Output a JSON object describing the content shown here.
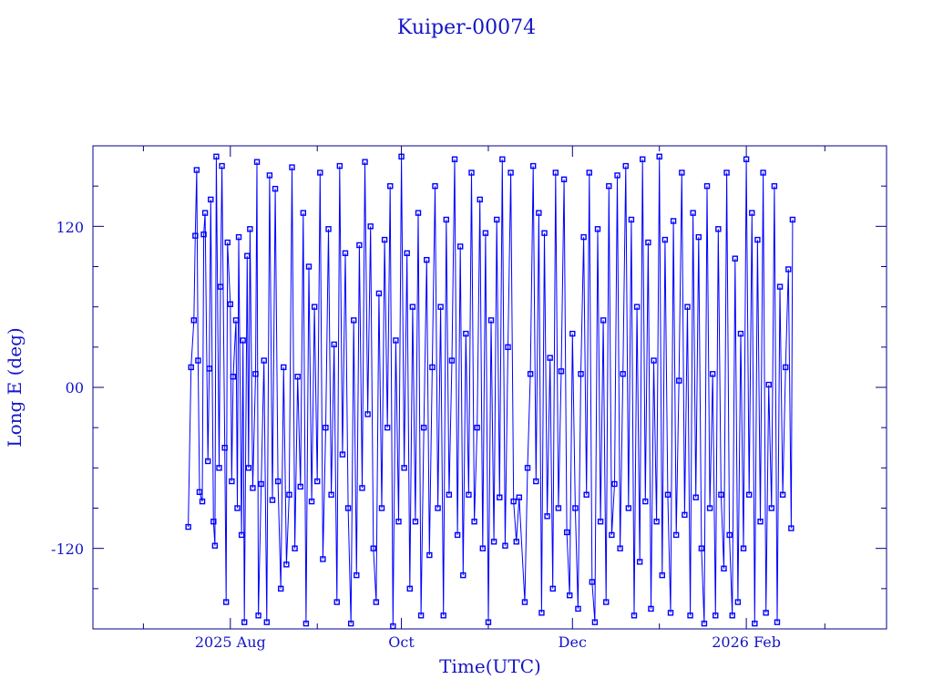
{
  "chart_data": {
    "type": "line",
    "title": "Kuiper-00074",
    "xlabel": "Time(UTC)",
    "ylabel": "Long E (deg)",
    "xlim": [
      "2025-06-13",
      "2026-03-23"
    ],
    "ylim": [
      -180,
      180
    ],
    "yticks": [
      120,
      0,
      -120
    ],
    "ytick_labels": [
      "120",
      "00",
      "-120"
    ],
    "xticks": [
      "2025-08-01",
      "2025-10-01",
      "2025-12-01",
      "2026-02-01"
    ],
    "xtick_labels": [
      "2025 Aug",
      "Oct",
      "Dec",
      "2026 Feb"
    ],
    "grid": false,
    "markers": "square",
    "colors": {
      "series": "#0000ff",
      "axes": "#00008b",
      "text": "#1414c8"
    },
    "series": [
      {
        "points": [
          [
            "2025-07-17",
            -104
          ],
          [
            "2025-07-18",
            15
          ],
          [
            "2025-07-19",
            50
          ],
          [
            "2025-07-19T12",
            113
          ],
          [
            "2025-07-20",
            162
          ],
          [
            "2025-07-20T12",
            20
          ],
          [
            "2025-07-21",
            -78
          ],
          [
            "2025-07-22",
            -85
          ],
          [
            "2025-07-22T12",
            114
          ],
          [
            "2025-07-23",
            130
          ],
          [
            "2025-07-24",
            -55
          ],
          [
            "2025-07-24T12",
            14
          ],
          [
            "2025-07-25",
            140
          ],
          [
            "2025-07-26",
            -100
          ],
          [
            "2025-07-26T12",
            -118
          ],
          [
            "2025-07-27",
            172
          ],
          [
            "2025-07-28",
            -60
          ],
          [
            "2025-07-28T12",
            75
          ],
          [
            "2025-07-29",
            165
          ],
          [
            "2025-07-30",
            -45
          ],
          [
            "2025-07-30T12",
            -160
          ],
          [
            "2025-07-31",
            108
          ],
          [
            "2025-08-01",
            62
          ],
          [
            "2025-08-01T12",
            -70
          ],
          [
            "2025-08-02",
            8
          ],
          [
            "2025-08-03",
            50
          ],
          [
            "2025-08-03T12",
            -90
          ],
          [
            "2025-08-04",
            112
          ],
          [
            "2025-08-05",
            -110
          ],
          [
            "2025-08-05T12",
            35
          ],
          [
            "2025-08-06",
            -175
          ],
          [
            "2025-08-07",
            98
          ],
          [
            "2025-08-07T12",
            -60
          ],
          [
            "2025-08-08",
            118
          ],
          [
            "2025-08-09",
            -75
          ],
          [
            "2025-08-10",
            10
          ],
          [
            "2025-08-10T12",
            168
          ],
          [
            "2025-08-11",
            -170
          ],
          [
            "2025-08-12",
            -72
          ],
          [
            "2025-08-13",
            20
          ],
          [
            "2025-08-14",
            -175
          ],
          [
            "2025-08-15",
            158
          ],
          [
            "2025-08-16",
            -84
          ],
          [
            "2025-08-17",
            148
          ],
          [
            "2025-08-18",
            -70
          ],
          [
            "2025-08-19",
            -150
          ],
          [
            "2025-08-20",
            15
          ],
          [
            "2025-08-21",
            -132
          ],
          [
            "2025-08-22",
            -80
          ],
          [
            "2025-08-23",
            164
          ],
          [
            "2025-08-24",
            -120
          ],
          [
            "2025-08-25",
            8
          ],
          [
            "2025-08-26",
            -74
          ],
          [
            "2025-08-27",
            130
          ],
          [
            "2025-08-28",
            -176
          ],
          [
            "2025-08-29",
            90
          ],
          [
            "2025-08-30",
            -85
          ],
          [
            "2025-08-31",
            60
          ],
          [
            "2025-09-01",
            -70
          ],
          [
            "2025-09-02",
            160
          ],
          [
            "2025-09-03",
            -128
          ],
          [
            "2025-09-04",
            -30
          ],
          [
            "2025-09-05",
            118
          ],
          [
            "2025-09-06",
            -80
          ],
          [
            "2025-09-07",
            32
          ],
          [
            "2025-09-08",
            -160
          ],
          [
            "2025-09-09",
            165
          ],
          [
            "2025-09-10",
            -50
          ],
          [
            "2025-09-11",
            100
          ],
          [
            "2025-09-12",
            -90
          ],
          [
            "2025-09-13",
            -176
          ],
          [
            "2025-09-14",
            50
          ],
          [
            "2025-09-15",
            -140
          ],
          [
            "2025-09-16",
            106
          ],
          [
            "2025-09-17",
            -75
          ],
          [
            "2025-09-18",
            168
          ],
          [
            "2025-09-19",
            -20
          ],
          [
            "2025-09-20",
            120
          ],
          [
            "2025-09-21",
            -120
          ],
          [
            "2025-09-22",
            -160
          ],
          [
            "2025-09-23",
            70
          ],
          [
            "2025-09-24",
            -90
          ],
          [
            "2025-09-25",
            110
          ],
          [
            "2025-09-26",
            -30
          ],
          [
            "2025-09-27",
            150
          ],
          [
            "2025-09-28",
            -178
          ],
          [
            "2025-09-29",
            35
          ],
          [
            "2025-09-30",
            -100
          ],
          [
            "2025-10-01",
            172
          ],
          [
            "2025-10-02",
            -60
          ],
          [
            "2025-10-03",
            100
          ],
          [
            "2025-10-04",
            -150
          ],
          [
            "2025-10-05",
            60
          ],
          [
            "2025-10-06",
            -100
          ],
          [
            "2025-10-07",
            130
          ],
          [
            "2025-10-08",
            -170
          ],
          [
            "2025-10-09",
            -30
          ],
          [
            "2025-10-10",
            95
          ],
          [
            "2025-10-11",
            -125
          ],
          [
            "2025-10-12",
            15
          ],
          [
            "2025-10-13",
            150
          ],
          [
            "2025-10-14",
            -90
          ],
          [
            "2025-10-15",
            60
          ],
          [
            "2025-10-16",
            -170
          ],
          [
            "2025-10-17",
            125
          ],
          [
            "2025-10-18",
            -80
          ],
          [
            "2025-10-19",
            20
          ],
          [
            "2025-10-20",
            170
          ],
          [
            "2025-10-21",
            -110
          ],
          [
            "2025-10-22",
            105
          ],
          [
            "2025-10-23",
            -140
          ],
          [
            "2025-10-24",
            40
          ],
          [
            "2025-10-25",
            -80
          ],
          [
            "2025-10-26",
            160
          ],
          [
            "2025-10-27",
            -100
          ],
          [
            "2025-10-28",
            -30
          ],
          [
            "2025-10-29",
            140
          ],
          [
            "2025-10-30",
            -120
          ],
          [
            "2025-10-31",
            115
          ],
          [
            "2025-11-01",
            -175
          ],
          [
            "2025-11-02",
            50
          ],
          [
            "2025-11-03",
            -115
          ],
          [
            "2025-11-04",
            125
          ],
          [
            "2025-11-05",
            -82
          ],
          [
            "2025-11-06",
            170
          ],
          [
            "2025-11-07",
            -118
          ],
          [
            "2025-11-08",
            30
          ],
          [
            "2025-11-09",
            160
          ],
          [
            "2025-11-10",
            -85
          ],
          [
            "2025-11-11",
            -115
          ],
          [
            "2025-11-12",
            -82
          ],
          [
            "2025-11-14",
            -160
          ],
          [
            "2025-11-15",
            -60
          ],
          [
            "2025-11-16",
            10
          ],
          [
            "2025-11-17",
            165
          ],
          [
            "2025-11-18",
            -70
          ],
          [
            "2025-11-19",
            130
          ],
          [
            "2025-11-20",
            -168
          ],
          [
            "2025-11-21",
            115
          ],
          [
            "2025-11-22",
            -96
          ],
          [
            "2025-11-23",
            22
          ],
          [
            "2025-11-24",
            -150
          ],
          [
            "2025-11-25",
            160
          ],
          [
            "2025-11-26",
            -90
          ],
          [
            "2025-11-27",
            12
          ],
          [
            "2025-11-28",
            155
          ],
          [
            "2025-11-29",
            -108
          ],
          [
            "2025-11-30",
            -155
          ],
          [
            "2025-12-01",
            40
          ],
          [
            "2025-12-02",
            -90
          ],
          [
            "2025-12-03",
            -165
          ],
          [
            "2025-12-04",
            10
          ],
          [
            "2025-12-05",
            112
          ],
          [
            "2025-12-06",
            -80
          ],
          [
            "2025-12-07",
            160
          ],
          [
            "2025-12-08",
            -145
          ],
          [
            "2025-12-09",
            -175
          ],
          [
            "2025-12-10",
            118
          ],
          [
            "2025-12-11",
            -100
          ],
          [
            "2025-12-12",
            50
          ],
          [
            "2025-12-13",
            -160
          ],
          [
            "2025-12-14",
            150
          ],
          [
            "2025-12-15",
            -110
          ],
          [
            "2025-12-16",
            -72
          ],
          [
            "2025-12-17",
            158
          ],
          [
            "2025-12-18",
            -120
          ],
          [
            "2025-12-19",
            10
          ],
          [
            "2025-12-20",
            165
          ],
          [
            "2025-12-21",
            -90
          ],
          [
            "2025-12-22",
            125
          ],
          [
            "2025-12-23",
            -170
          ],
          [
            "2025-12-24",
            60
          ],
          [
            "2025-12-25",
            -130
          ],
          [
            "2025-12-26",
            170
          ],
          [
            "2025-12-27",
            -85
          ],
          [
            "2025-12-28",
            108
          ],
          [
            "2025-12-29",
            -165
          ],
          [
            "2025-12-30",
            20
          ],
          [
            "2025-12-31",
            -100
          ],
          [
            "2026-01-01",
            172
          ],
          [
            "2026-01-02",
            -140
          ],
          [
            "2026-01-03",
            110
          ],
          [
            "2026-01-04",
            -80
          ],
          [
            "2026-01-05",
            -168
          ],
          [
            "2026-01-06",
            124
          ],
          [
            "2026-01-07",
            -110
          ],
          [
            "2026-01-08",
            5
          ],
          [
            "2026-01-09",
            160
          ],
          [
            "2026-01-10",
            -95
          ],
          [
            "2026-01-11",
            60
          ],
          [
            "2026-01-12",
            -170
          ],
          [
            "2026-01-13",
            130
          ],
          [
            "2026-01-14",
            -82
          ],
          [
            "2026-01-15",
            112
          ],
          [
            "2026-01-16",
            -120
          ],
          [
            "2026-01-17",
            -176
          ],
          [
            "2026-01-18",
            150
          ],
          [
            "2026-01-19",
            -90
          ],
          [
            "2026-01-20",
            10
          ],
          [
            "2026-01-21",
            -170
          ],
          [
            "2026-01-22",
            118
          ],
          [
            "2026-01-23",
            -80
          ],
          [
            "2026-01-24",
            -135
          ],
          [
            "2026-01-25",
            160
          ],
          [
            "2026-01-26",
            -110
          ],
          [
            "2026-01-27",
            -170
          ],
          [
            "2026-01-28",
            96
          ],
          [
            "2026-01-29",
            -160
          ],
          [
            "2026-01-30",
            40
          ],
          [
            "2026-01-31",
            -120
          ],
          [
            "2026-02-01",
            170
          ],
          [
            "2026-02-02",
            -80
          ],
          [
            "2026-02-03",
            130
          ],
          [
            "2026-02-04",
            -176
          ],
          [
            "2026-02-05",
            110
          ],
          [
            "2026-02-06",
            -100
          ],
          [
            "2026-02-07",
            160
          ],
          [
            "2026-02-08",
            -168
          ],
          [
            "2026-02-09",
            2
          ],
          [
            "2026-02-10",
            -90
          ],
          [
            "2026-02-11",
            150
          ],
          [
            "2026-02-12",
            -175
          ],
          [
            "2026-02-13",
            75
          ],
          [
            "2026-02-14",
            -80
          ],
          [
            "2026-02-15",
            15
          ],
          [
            "2026-02-16",
            88
          ],
          [
            "2026-02-17",
            -105
          ],
          [
            "2026-02-17T12",
            125
          ]
        ]
      }
    ]
  }
}
